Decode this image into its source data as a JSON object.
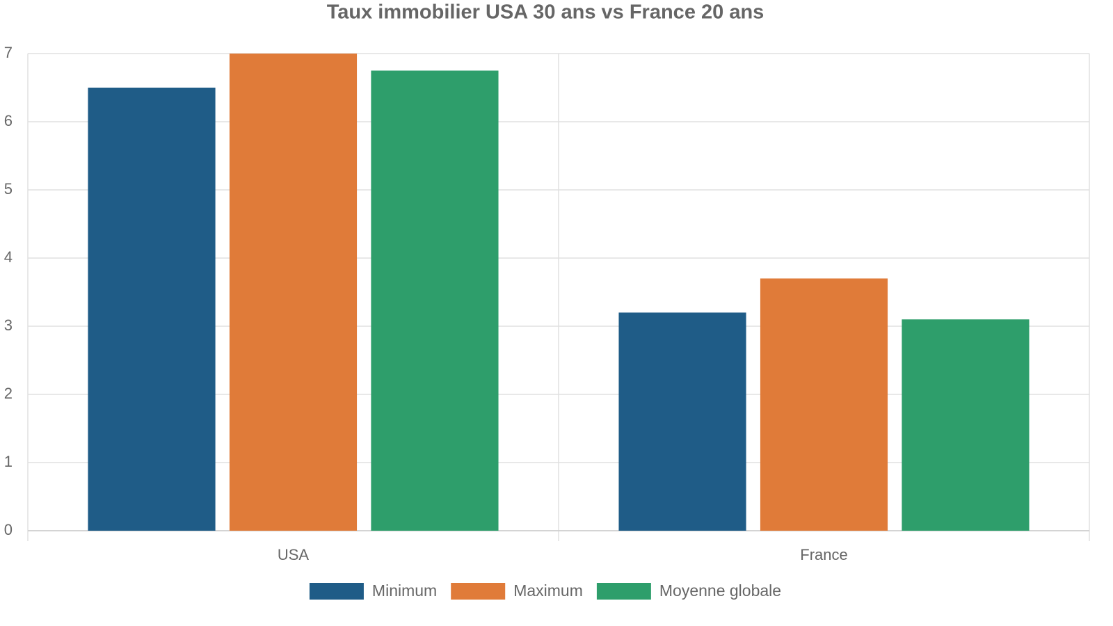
{
  "chart_data": {
    "type": "bar",
    "title": "Taux immobilier USA 30 ans vs France 20 ans",
    "categories": [
      "USA",
      "France"
    ],
    "series": [
      {
        "name": "Minimum",
        "color": "#1f5c87",
        "values": [
          6.5,
          3.2
        ]
      },
      {
        "name": "Maximum",
        "color": "#e07b39",
        "values": [
          7,
          3.7
        ]
      },
      {
        "name": "Moyenne globale",
        "color": "#2e9e6b",
        "values": [
          6.75,
          3.1
        ]
      }
    ],
    "ylim": [
      0,
      7
    ],
    "yticks": [
      0,
      1,
      2,
      3,
      4,
      5,
      6,
      7
    ],
    "grid": true,
    "legend": "bottom"
  }
}
